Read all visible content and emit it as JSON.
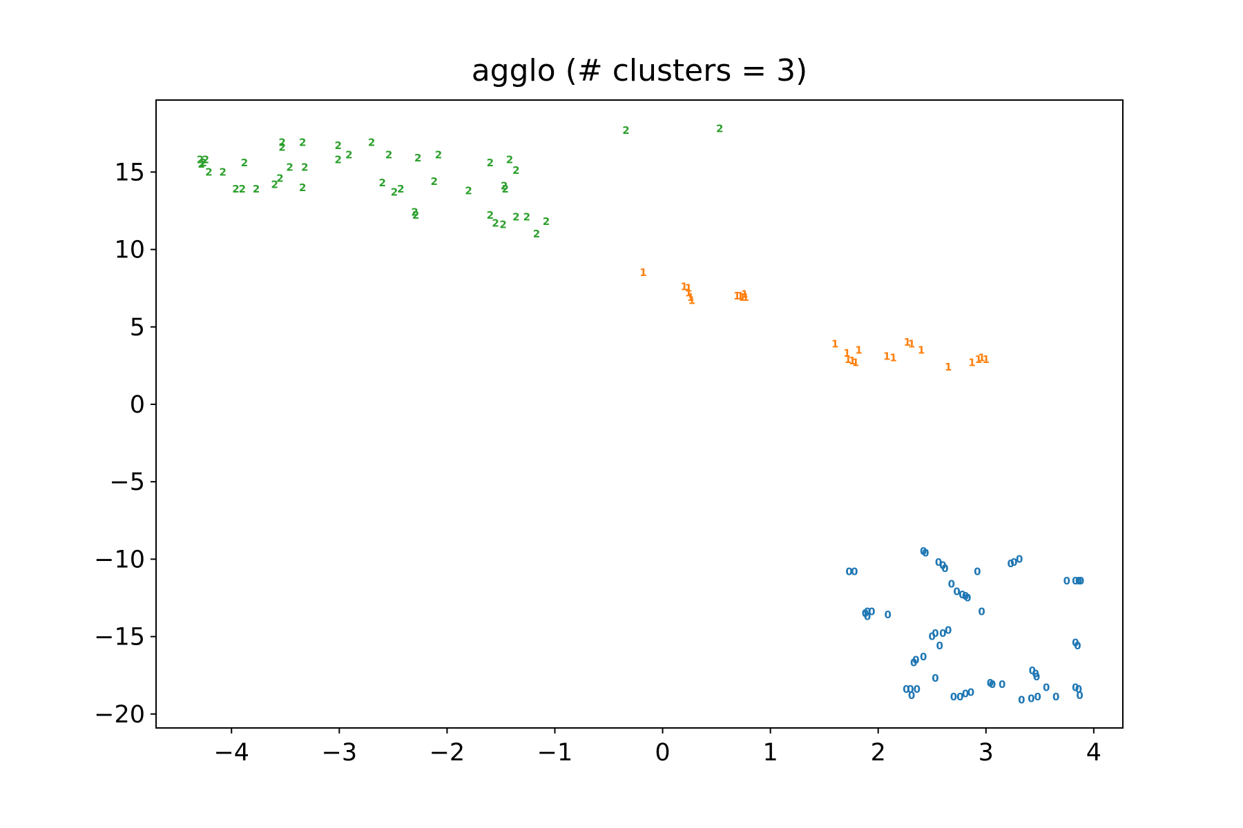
{
  "chart_data": {
    "type": "scatter",
    "title": "agglo (# clusters = 3)",
    "xlabel": "",
    "ylabel": "",
    "xlim": [
      -4.7,
      4.27
    ],
    "ylim": [
      -20.9,
      19.65
    ],
    "xticks": [
      -4,
      -3,
      -2,
      -1,
      0,
      1,
      2,
      3,
      4
    ],
    "xtick_labels": [
      "−4",
      "−3",
      "−2",
      "−1",
      "0",
      "1",
      "2",
      "3",
      "4"
    ],
    "yticks": [
      -20,
      -15,
      -10,
      -5,
      0,
      5,
      10,
      15
    ],
    "ytick_labels": [
      "−20",
      "−15",
      "−10",
      "−5",
      "0",
      "5",
      "10",
      "15"
    ],
    "grid": false,
    "series": [
      {
        "marker": "0",
        "color": "#1f77b4",
        "points": [
          [
            2.42,
            -9.5
          ],
          [
            2.44,
            -9.6
          ],
          [
            2.56,
            -10.2
          ],
          [
            2.6,
            -10.4
          ],
          [
            2.62,
            -10.6
          ],
          [
            1.73,
            -10.8
          ],
          [
            1.78,
            -10.8
          ],
          [
            2.92,
            -10.8
          ],
          [
            3.23,
            -10.3
          ],
          [
            3.26,
            -10.2
          ],
          [
            3.31,
            -10.0
          ],
          [
            2.68,
            -11.6
          ],
          [
            2.73,
            -12.1
          ],
          [
            2.78,
            -12.3
          ],
          [
            2.81,
            -12.4
          ],
          [
            2.83,
            -12.5
          ],
          [
            3.75,
            -11.4
          ],
          [
            3.83,
            -11.4
          ],
          [
            3.86,
            -11.4
          ],
          [
            3.88,
            -11.4
          ],
          [
            1.88,
            -13.5
          ],
          [
            1.9,
            -13.4
          ],
          [
            1.9,
            -13.7
          ],
          [
            1.94,
            -13.4
          ],
          [
            2.09,
            -13.6
          ],
          [
            2.96,
            -13.4
          ],
          [
            2.5,
            -15.0
          ],
          [
            2.53,
            -14.8
          ],
          [
            2.6,
            -14.8
          ],
          [
            2.65,
            -14.6
          ],
          [
            2.57,
            -15.6
          ],
          [
            3.83,
            -15.4
          ],
          [
            3.85,
            -15.6
          ],
          [
            2.33,
            -16.7
          ],
          [
            2.35,
            -16.5
          ],
          [
            2.42,
            -16.3
          ],
          [
            2.53,
            -17.7
          ],
          [
            3.43,
            -17.2
          ],
          [
            3.46,
            -17.4
          ],
          [
            3.47,
            -17.6
          ],
          [
            3.04,
            -18.0
          ],
          [
            3.06,
            -18.1
          ],
          [
            3.15,
            -18.1
          ],
          [
            3.56,
            -18.3
          ],
          [
            2.26,
            -18.4
          ],
          [
            2.3,
            -18.4
          ],
          [
            2.31,
            -18.8
          ],
          [
            2.36,
            -18.4
          ],
          [
            3.83,
            -18.3
          ],
          [
            3.86,
            -18.4
          ],
          [
            3.87,
            -18.8
          ],
          [
            2.7,
            -18.9
          ],
          [
            2.76,
            -18.9
          ],
          [
            2.81,
            -18.7
          ],
          [
            2.86,
            -18.6
          ],
          [
            3.33,
            -19.1
          ],
          [
            3.42,
            -19.0
          ],
          [
            3.48,
            -18.9
          ],
          [
            3.65,
            -18.9
          ]
        ]
      },
      {
        "marker": "1",
        "color": "#ff7f0e",
        "points": [
          [
            -0.18,
            8.5
          ],
          [
            0.2,
            7.6
          ],
          [
            0.24,
            7.5
          ],
          [
            0.24,
            7.2
          ],
          [
            0.26,
            6.9
          ],
          [
            0.27,
            6.7
          ],
          [
            0.69,
            7.0
          ],
          [
            0.72,
            7.0
          ],
          [
            0.74,
            6.9
          ],
          [
            0.77,
            6.9
          ],
          [
            0.76,
            7.1
          ],
          [
            1.6,
            3.9
          ],
          [
            1.71,
            3.3
          ],
          [
            1.72,
            2.9
          ],
          [
            1.76,
            2.8
          ],
          [
            1.79,
            2.7
          ],
          [
            1.82,
            3.5
          ],
          [
            2.08,
            3.1
          ],
          [
            2.14,
            3.0
          ],
          [
            2.27,
            4.0
          ],
          [
            2.31,
            3.9
          ],
          [
            2.4,
            3.5
          ],
          [
            2.65,
            2.4
          ],
          [
            2.87,
            2.7
          ],
          [
            2.93,
            2.9
          ],
          [
            2.96,
            3.0
          ],
          [
            3.0,
            2.9
          ]
        ]
      },
      {
        "marker": "2",
        "color": "#2ca02c",
        "points": [
          [
            -4.29,
            15.8
          ],
          [
            -4.26,
            15.6
          ],
          [
            -4.28,
            15.5
          ],
          [
            -4.24,
            15.8
          ],
          [
            -4.21,
            15.0
          ],
          [
            -4.08,
            15.0
          ],
          [
            -3.96,
            13.9
          ],
          [
            -3.9,
            13.9
          ],
          [
            -3.88,
            15.6
          ],
          [
            -3.77,
            13.9
          ],
          [
            -3.6,
            14.2
          ],
          [
            -3.55,
            14.6
          ],
          [
            -3.53,
            16.9
          ],
          [
            -3.53,
            16.6
          ],
          [
            -3.46,
            15.3
          ],
          [
            -3.34,
            16.9
          ],
          [
            -3.34,
            14.0
          ],
          [
            -3.32,
            15.3
          ],
          [
            -3.01,
            16.7
          ],
          [
            -3.01,
            15.8
          ],
          [
            -2.91,
            16.1
          ],
          [
            -2.7,
            16.9
          ],
          [
            -2.6,
            14.3
          ],
          [
            -2.54,
            16.1
          ],
          [
            -2.49,
            13.7
          ],
          [
            -2.43,
            13.9
          ],
          [
            -2.3,
            12.4
          ],
          [
            -2.29,
            12.2
          ],
          [
            -2.27,
            15.9
          ],
          [
            -2.12,
            14.4
          ],
          [
            -2.08,
            16.1
          ],
          [
            -1.8,
            13.8
          ],
          [
            -1.6,
            15.6
          ],
          [
            -1.6,
            12.2
          ],
          [
            -1.55,
            11.7
          ],
          [
            -1.48,
            11.6
          ],
          [
            -1.47,
            14.1
          ],
          [
            -1.46,
            13.9
          ],
          [
            -1.42,
            15.8
          ],
          [
            -1.36,
            15.1
          ],
          [
            -1.36,
            12.1
          ],
          [
            -1.26,
            12.1
          ],
          [
            -1.17,
            11.0
          ],
          [
            -1.08,
            11.8
          ],
          [
            -0.34,
            17.7
          ],
          [
            0.53,
            17.8
          ]
        ]
      }
    ]
  }
}
